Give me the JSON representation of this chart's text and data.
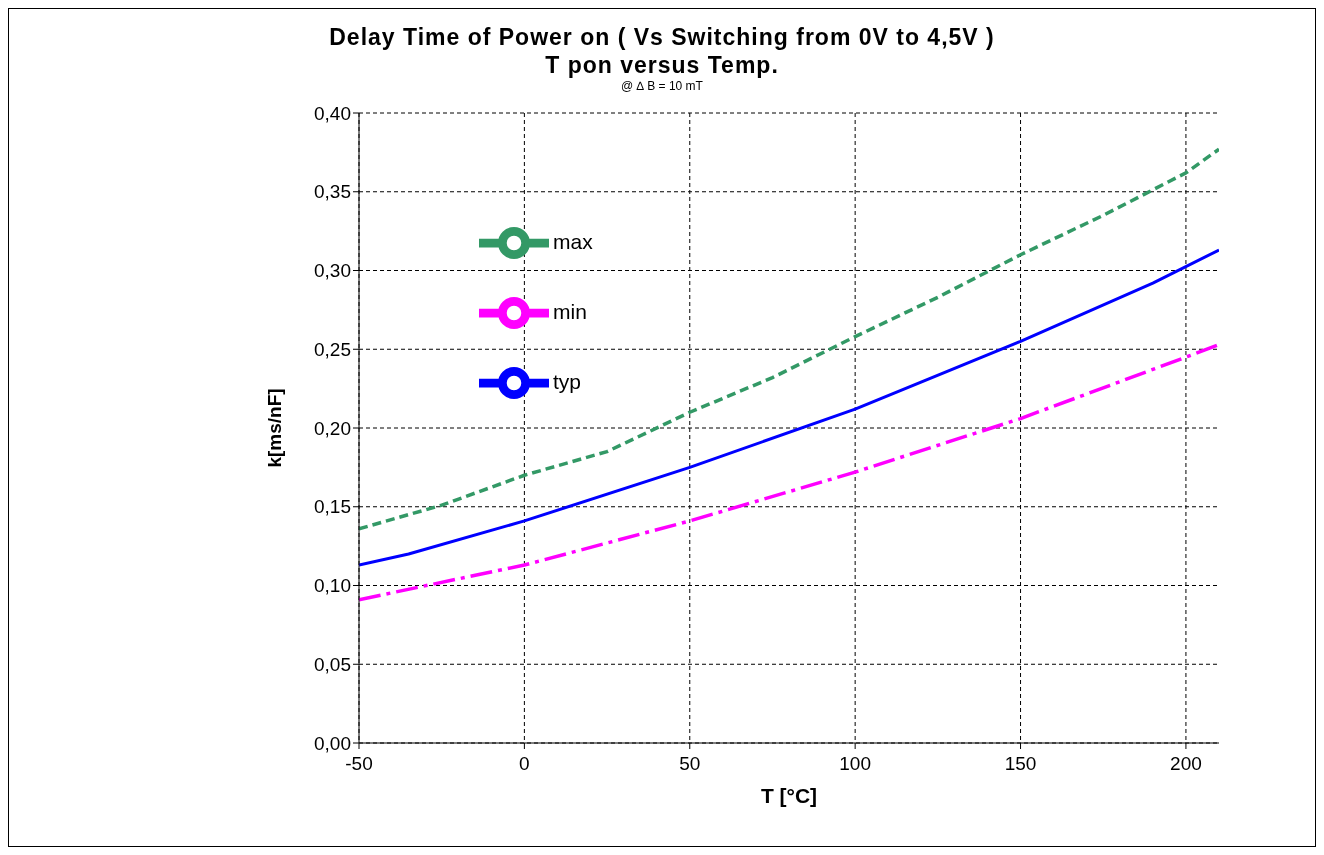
{
  "chart_data": {
    "type": "line",
    "title": "Delay Time of Power on ( Vs Switching from 0V to 4,5V )\nT pon versus Temp.",
    "subtitle": "@ ∆ B = 10 mT",
    "xlabel": "T [°C]",
    "ylabel": "k[ms/nF]",
    "xlim": [
      -50,
      210
    ],
    "xticks": [
      -50,
      0,
      50,
      100,
      150,
      200
    ],
    "ylim": [
      0,
      0.4
    ],
    "yticks": [
      {
        "value": 0,
        "label": "0,00"
      },
      {
        "value": 0.05,
        "label": "0,05"
      },
      {
        "value": 0.1,
        "label": "0,10"
      },
      {
        "value": 0.15,
        "label": "0,15"
      },
      {
        "value": 0.2,
        "label": "0,20"
      },
      {
        "value": 0.25,
        "label": "0,25"
      },
      {
        "value": 0.3,
        "label": "0,30"
      },
      {
        "value": 0.35,
        "label": "0,35"
      },
      {
        "value": 0.4,
        "label": "0,40"
      }
    ],
    "grid": true,
    "legend": "top left",
    "marker": "none",
    "series": [
      {
        "name": "min",
        "color": "#ff00ff",
        "line_style": "dashed",
        "x": [
          -50,
          0,
          50,
          100,
          150,
          200,
          210
        ],
        "values": [
          0.091,
          0.113,
          0.141,
          0.172,
          0.206,
          0.245,
          0.253
        ]
      },
      {
        "name": "max",
        "color": "#339966",
        "line_style": "dotted",
        "x": [
          -50,
          -25,
          0,
          25,
          50,
          75,
          100,
          125,
          150,
          175,
          200,
          210
        ],
        "values": [
          0.136,
          0.151,
          0.17,
          0.185,
          0.21,
          0.232,
          0.258,
          0.283,
          0.31,
          0.335,
          0.362,
          0.377
        ]
      },
      {
        "name": "typ",
        "color": "#0000ff",
        "line_style": "solid",
        "x": [
          -50,
          -35,
          0,
          50,
          100,
          150,
          190,
          210
        ],
        "values": [
          0.113,
          0.12,
          0.141,
          0.175,
          0.212,
          0.255,
          0.292,
          0.313
        ]
      }
    ]
  }
}
